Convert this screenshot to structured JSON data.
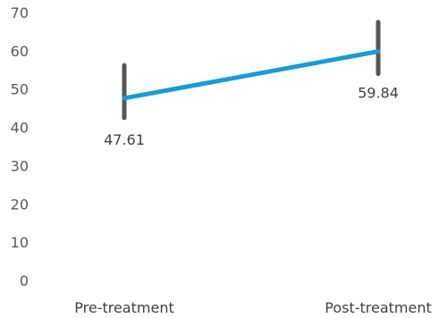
{
  "chart_data": {
    "type": "line",
    "title": "",
    "xlabel": "",
    "ylabel": "",
    "categories": [
      "Pre-treatment",
      "Post-treatment"
    ],
    "y_ticks": [
      "0",
      "10",
      "20",
      "30",
      "40",
      "50",
      "60",
      "70"
    ],
    "ylim": [
      0,
      70
    ],
    "grid": false,
    "series": [
      {
        "values": [
          47.61,
          59.84
        ],
        "value_labels": [
          "47.61",
          "59.84"
        ],
        "color": "#1a9ad6",
        "error_bars": [
          [
            42.5,
            56.2
          ],
          [
            54.0,
            67.5
          ]
        ],
        "error_bar_color": "#555555"
      }
    ]
  }
}
